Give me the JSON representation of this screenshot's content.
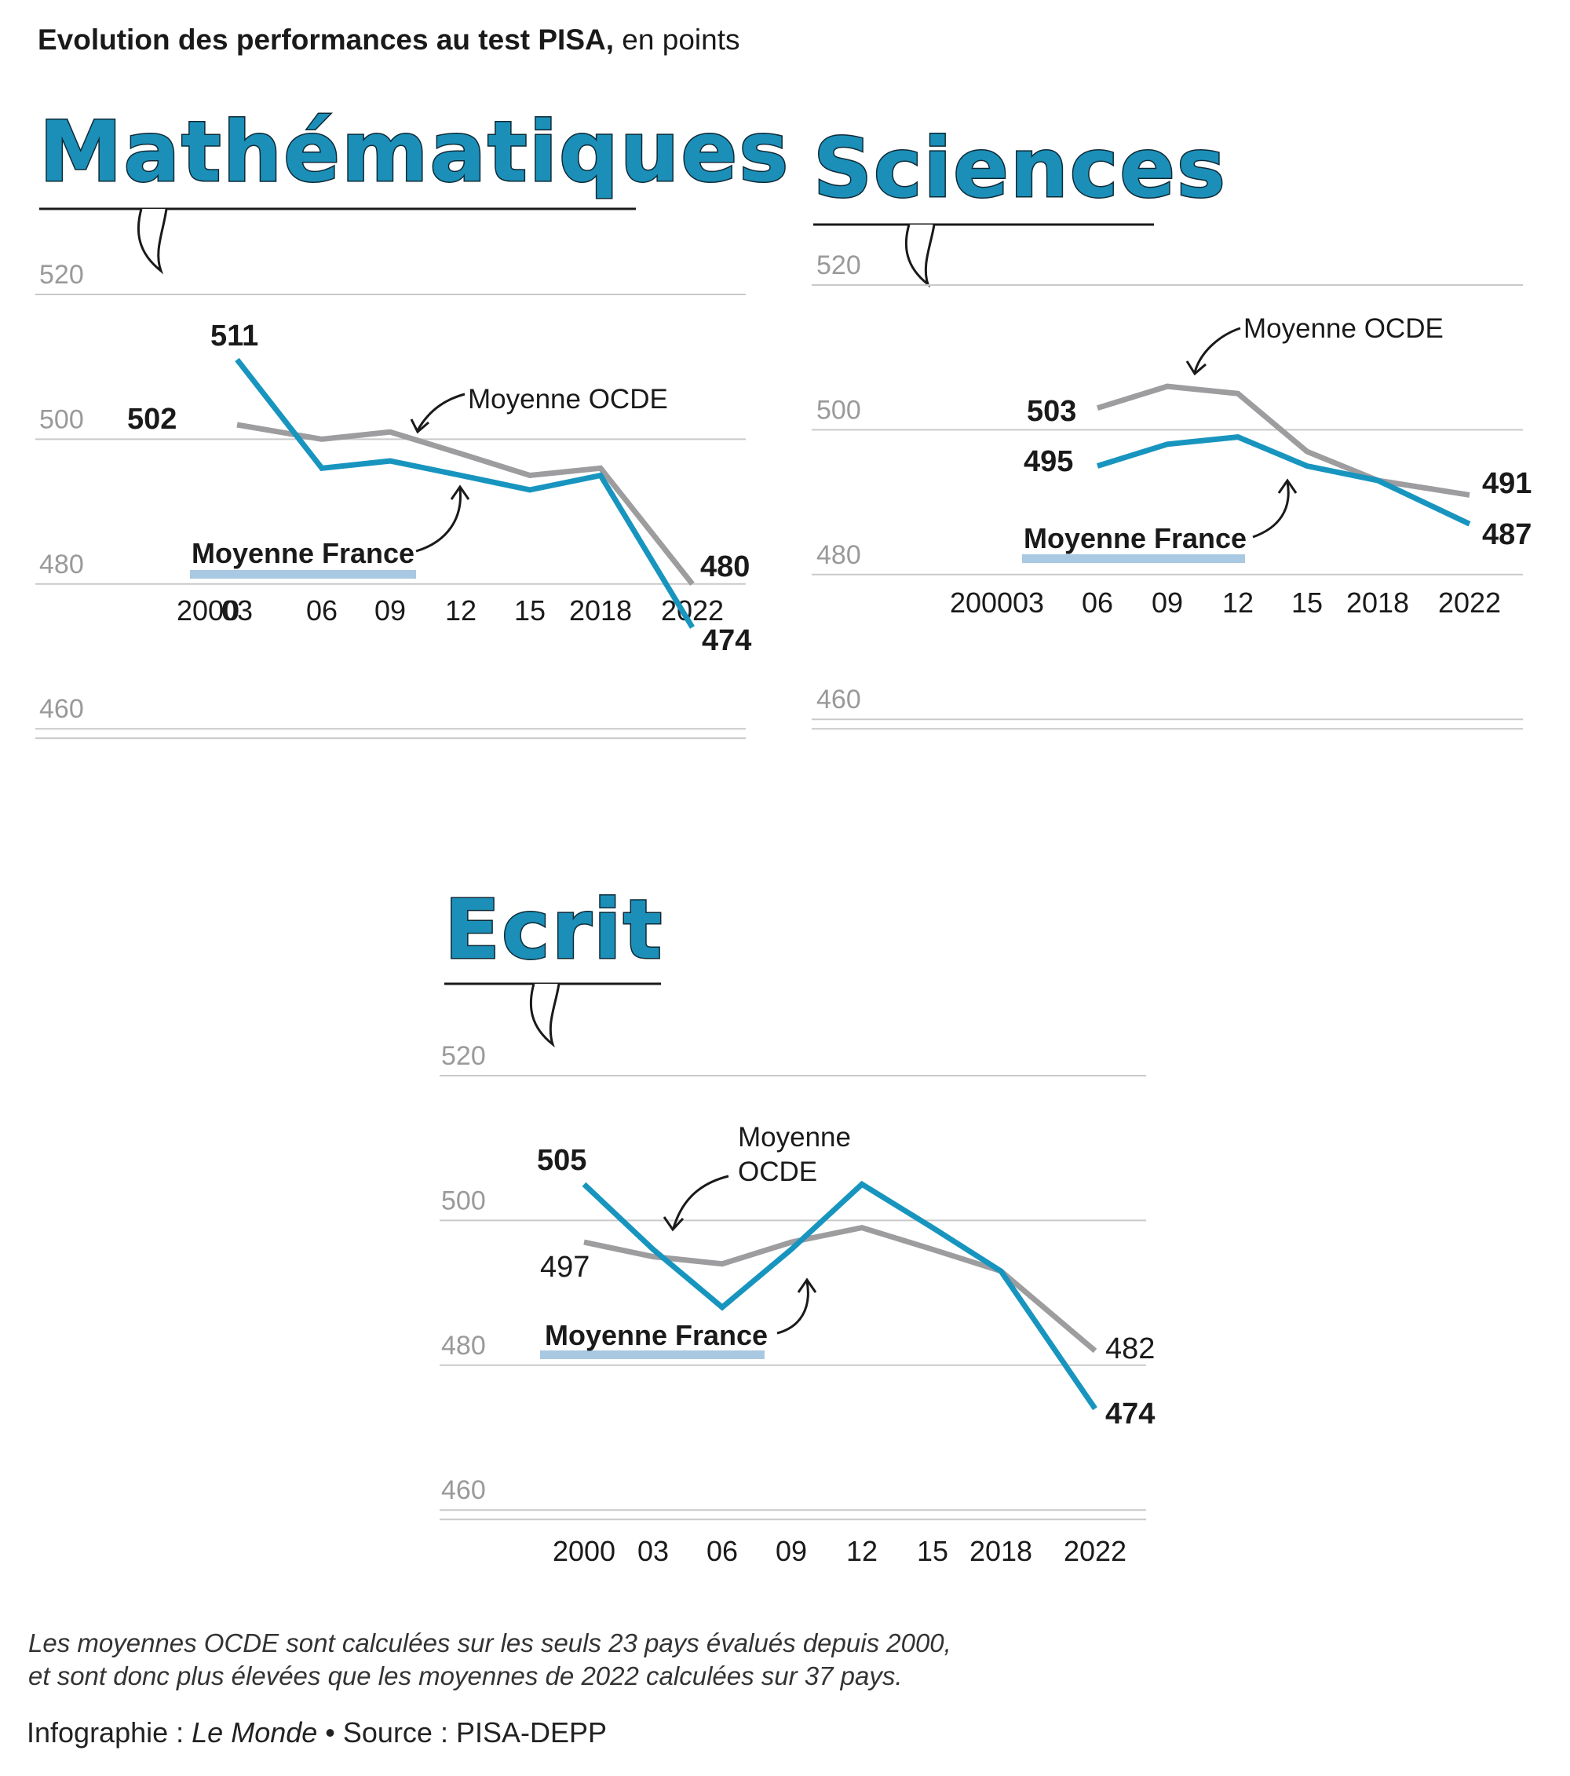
{
  "header": {
    "title_bold": "Evolution des performances au test PISA,",
    "title_rest": " en points"
  },
  "colors": {
    "france": "#1895bf",
    "ocde": "#9d9d9f",
    "france_label_bar": "#a9c8e1",
    "title_fill": "#1b8fb8"
  },
  "chart_data": [
    {
      "type": "line",
      "title": "Mathématiques",
      "x_tick_labels": [
        "2000",
        "03",
        "06",
        "09",
        "12",
        "15",
        "2018",
        "2022"
      ],
      "y_tick_labels": [
        "520",
        "500",
        "480",
        "460"
      ],
      "ylim": [
        460,
        520
      ],
      "series": [
        {
          "name": "Moyenne France",
          "x": [
            2003,
            2006,
            2009,
            2012,
            2015,
            2018,
            2022
          ],
          "values": [
            511,
            496,
            497,
            495,
            493,
            495,
            474
          ]
        },
        {
          "name": "Moyenne OCDE",
          "x": [
            2003,
            2006,
            2009,
            2012,
            2015,
            2018,
            2022
          ],
          "values": [
            502,
            500,
            501,
            498,
            495,
            496,
            480
          ]
        }
      ],
      "annotations": {
        "france_start": "511",
        "ocde_start": "502",
        "ocde_end": "480",
        "france_end": "474",
        "ocde_label": "Moyenne OCDE",
        "france_label": "Moyenne France"
      }
    },
    {
      "type": "line",
      "title": "Sciences",
      "x_tick_labels": [
        "2000",
        "03",
        "06",
        "09",
        "12",
        "15",
        "2018",
        "2022"
      ],
      "y_tick_labels": [
        "520",
        "500",
        "480",
        "460"
      ],
      "ylim": [
        460,
        520
      ],
      "series": [
        {
          "name": "Moyenne France",
          "x": [
            2006,
            2009,
            2012,
            2015,
            2018,
            2022
          ],
          "values": [
            495,
            498,
            499,
            495,
            493,
            487
          ]
        },
        {
          "name": "Moyenne OCDE",
          "x": [
            2006,
            2009,
            2012,
            2015,
            2018,
            2022
          ],
          "values": [
            503,
            506,
            505,
            497,
            493,
            491
          ]
        }
      ],
      "annotations": {
        "ocde_start": "503",
        "france_start": "495",
        "ocde_end": "491",
        "france_end": "487",
        "ocde_label": "Moyenne OCDE",
        "france_label": "Moyenne France"
      }
    },
    {
      "type": "line",
      "title": "Ecrit",
      "x_tick_labels": [
        "2000",
        "03",
        "06",
        "09",
        "12",
        "15",
        "2018",
        "2022"
      ],
      "y_tick_labels": [
        "520",
        "500",
        "480",
        "460"
      ],
      "ylim": [
        460,
        520
      ],
      "series": [
        {
          "name": "Moyenne France",
          "x": [
            2000,
            2003,
            2006,
            2009,
            2012,
            2015,
            2018,
            2022
          ],
          "values": [
            505,
            496,
            488,
            496,
            505,
            499,
            493,
            474
          ]
        },
        {
          "name": "Moyenne OCDE",
          "x": [
            2000,
            2003,
            2006,
            2009,
            2012,
            2015,
            2018,
            2022
          ],
          "values": [
            497,
            495,
            494,
            497,
            499,
            496,
            493,
            482
          ]
        }
      ],
      "annotations": {
        "france_start": "505",
        "ocde_start": "497",
        "ocde_end": "482",
        "france_end": "474",
        "ocde_label_line1": "Moyenne",
        "ocde_label_line2": "OCDE",
        "france_label": "Moyenne France"
      }
    }
  ],
  "footer": {
    "note_line1": "Les moyennes OCDE sont calculées sur les seuls 23 pays évalués depuis 2000,",
    "note_line2": "et sont donc plus élevées que les moyennes de 2022 calculées sur 37 pays.",
    "credit_prefix": "Infographie : ",
    "credit_source": "Le Monde",
    "credit_suffix": " • Source : PISA-DEPP"
  }
}
